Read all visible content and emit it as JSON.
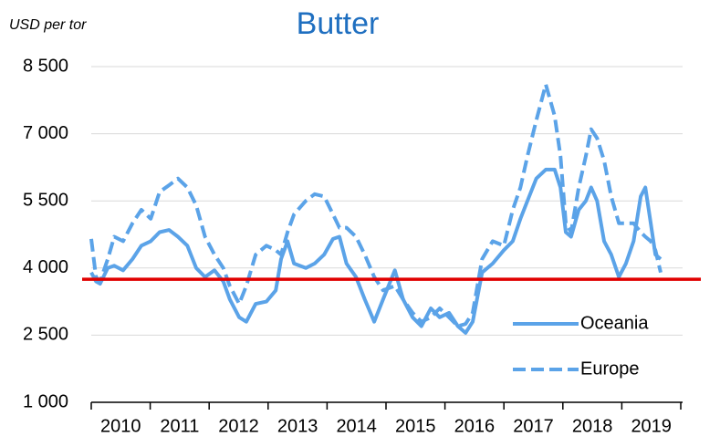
{
  "chart_data": {
    "type": "line",
    "title": "Butter",
    "y_axis_label": "USD per tor",
    "x": [
      2010.0,
      2010.08,
      2010.15,
      2010.28,
      2010.39,
      2010.54,
      2010.7,
      2010.85,
      2011.01,
      2011.16,
      2011.32,
      2011.47,
      2011.63,
      2011.78,
      2011.93,
      2012.09,
      2012.24,
      2012.35,
      2012.51,
      2012.63,
      2012.79,
      2012.97,
      2013.13,
      2013.22,
      2013.33,
      2013.44,
      2013.64,
      2013.79,
      2013.95,
      2014.1,
      2014.21,
      2014.33,
      2014.49,
      2014.64,
      2014.8,
      2014.95,
      2015.15,
      2015.29,
      2015.45,
      2015.6,
      2015.76,
      2015.91,
      2016.07,
      2016.22,
      2016.35,
      2016.47,
      2016.63,
      2016.81,
      2017.0,
      2017.15,
      2017.28,
      2017.4,
      2017.55,
      2017.71,
      2017.86,
      2017.96,
      2018.05,
      2018.14,
      2018.27,
      2018.39,
      2018.48,
      2018.58,
      2018.7,
      2018.82,
      2018.95,
      2019.07,
      2019.2,
      2019.32,
      2019.4,
      2019.49,
      2019.57,
      2019.66
    ],
    "series": [
      {
        "name": "Oceania",
        "color": "#5ba3e8",
        "dash": false,
        "values": [
          3900,
          3700,
          3650,
          4000,
          4050,
          3950,
          4200,
          4500,
          4600,
          4800,
          4850,
          4700,
          4500,
          4000,
          3800,
          3950,
          3700,
          3300,
          2900,
          2800,
          3200,
          3250,
          3500,
          4200,
          4600,
          4100,
          4000,
          4100,
          4300,
          4650,
          4700,
          4100,
          3800,
          3300,
          2800,
          3300,
          3950,
          3300,
          2900,
          2700,
          3100,
          2900,
          3000,
          2700,
          2550,
          2800,
          3900,
          4100,
          4400,
          4600,
          5100,
          5500,
          6000,
          6200,
          6200,
          5800,
          4800,
          4700,
          5300,
          5500,
          5800,
          5500,
          4600,
          4300,
          3800,
          4100,
          4600,
          5600,
          5800,
          5000,
          4300,
          4200
        ]
      },
      {
        "name": "Europe",
        "color": "#5ba3e8",
        "dash": true,
        "values": [
          4650,
          3800,
          3700,
          4200,
          4700,
          4600,
          5000,
          5300,
          5100,
          5700,
          5850,
          6000,
          5800,
          5400,
          4700,
          4300,
          4000,
          3600,
          3200,
          3600,
          4300,
          4500,
          4400,
          4300,
          4800,
          5200,
          5500,
          5650,
          5600,
          5200,
          4900,
          4900,
          4700,
          4300,
          3800,
          3500,
          3600,
          3300,
          3000,
          2800,
          2900,
          3100,
          2900,
          2700,
          2750,
          3000,
          4200,
          4600,
          4500,
          5300,
          5800,
          6500,
          7300,
          8100,
          7400,
          6500,
          5000,
          4800,
          5800,
          6500,
          7100,
          6900,
          6400,
          5600,
          5000,
          5000,
          5000,
          4800,
          4700,
          4600,
          4400,
          3900
        ]
      }
    ],
    "reference_line": {
      "value": 3750,
      "color": "#e00000"
    },
    "categories": [
      "2010",
      "2011",
      "2012",
      "2013",
      "2014",
      "2015",
      "2016",
      "2017",
      "2018",
      "2019"
    ],
    "xlim": [
      2010,
      2020
    ],
    "xticks": [
      2010,
      2011,
      2012,
      2013,
      2014,
      2015,
      2016,
      2017,
      2018,
      2019,
      2020
    ],
    "ylim": [
      1000,
      8500
    ],
    "yticks": [
      {
        "value": 1000,
        "label": "1 000"
      },
      {
        "value": 2500,
        "label": "2 500"
      },
      {
        "value": 4000,
        "label": "4 000"
      },
      {
        "value": 5500,
        "label": "5 500"
      },
      {
        "value": 7000,
        "label": "7 000"
      },
      {
        "value": 8500,
        "label": "8 500"
      }
    ],
    "grid": true,
    "legend": "lower right"
  }
}
